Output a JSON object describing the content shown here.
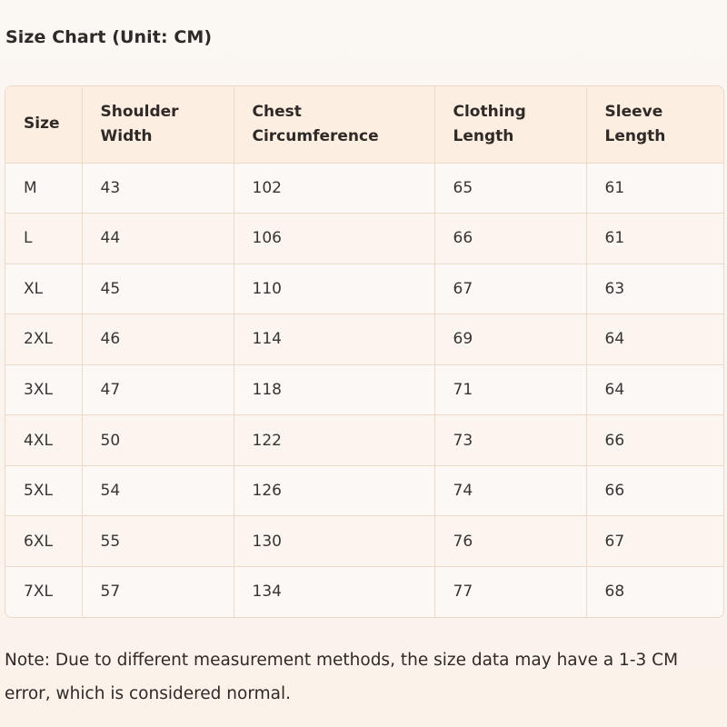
{
  "title": "Size Chart (Unit: CM)",
  "table": {
    "headers": [
      "Size",
      "Shoulder\nWidth",
      "Chest\nCircumference",
      "Clothing\nLength",
      "Sleeve\nLength"
    ],
    "rows": [
      [
        "M",
        "43",
        "102",
        "65",
        "61"
      ],
      [
        "L",
        "44",
        "106",
        "66",
        "61"
      ],
      [
        "XL",
        "45",
        "110",
        "67",
        "63"
      ],
      [
        "2XL",
        "46",
        "114",
        "69",
        "64"
      ],
      [
        "3XL",
        "47",
        "118",
        "71",
        "64"
      ],
      [
        "4XL",
        "50",
        "122",
        "73",
        "66"
      ],
      [
        "5XL",
        "54",
        "126",
        "74",
        "66"
      ],
      [
        "6XL",
        "55",
        "130",
        "76",
        "67"
      ],
      [
        "7XL",
        "57",
        "134",
        "77",
        "68"
      ]
    ]
  },
  "note": "Note: Due to different measurement methods, the size data may have a 1-3 CM error, which is considered normal."
}
